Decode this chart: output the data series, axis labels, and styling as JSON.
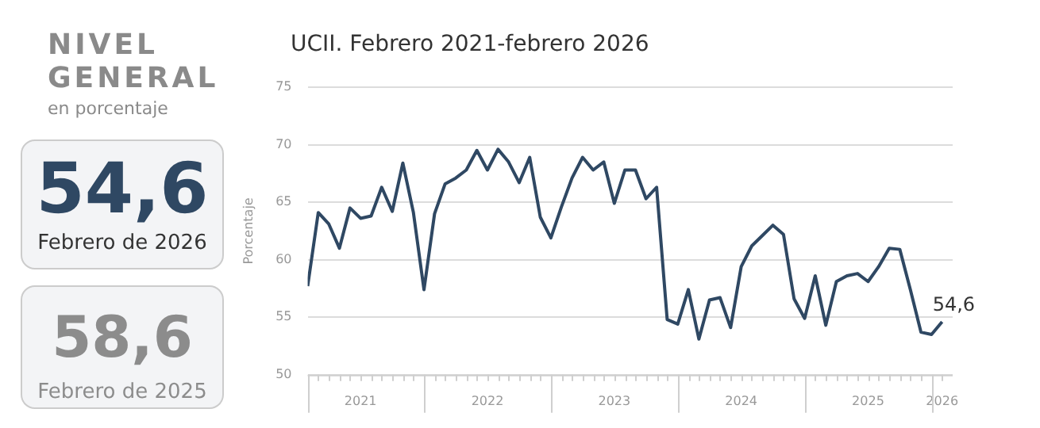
{
  "chart_data": [
    {
      "type": "other",
      "title": "NIVEL GENERAL",
      "subtitle": "en porcentaje",
      "annotations": [
        "54,6",
        "Febrero de 2026",
        "58,6",
        "Febrero de 2025"
      ]
    },
    {
      "type": "line",
      "title": "UCII. Febrero 2021-febrero 2026",
      "ylabel": "Porcentaje",
      "x": [
        "2021-02",
        "2021-03",
        "2021-04",
        "2021-05",
        "2021-06",
        "2021-07",
        "2021-08",
        "2021-09",
        "2021-10",
        "2021-11",
        "2021-12",
        "2022-01",
        "2022-02",
        "2022-03",
        "2022-04",
        "2022-05",
        "2022-06",
        "2022-07",
        "2022-08",
        "2022-09",
        "2022-10",
        "2022-11",
        "2022-12",
        "2023-01",
        "2023-02",
        "2023-03",
        "2023-04",
        "2023-05",
        "2023-06",
        "2023-07",
        "2023-08",
        "2023-09",
        "2023-10",
        "2023-11",
        "2023-12",
        "2024-01",
        "2024-02",
        "2024-03",
        "2024-04",
        "2024-05",
        "2024-06",
        "2024-07",
        "2024-08",
        "2024-09",
        "2024-10",
        "2024-11",
        "2024-12",
        "2025-01",
        "2025-02",
        "2025-03",
        "2025-04",
        "2025-05",
        "2025-06",
        "2025-07",
        "2025-08",
        "2025-09",
        "2025-10",
        "2025-11",
        "2025-12",
        "2026-01",
        "2026-02"
      ],
      "series": [
        {
          "color": "#2f4863",
          "values": [
            57.7,
            64.1,
            63.1,
            61.0,
            64.5,
            63.6,
            63.8,
            66.3,
            64.2,
            68.4,
            64.1,
            57.4,
            64.0,
            66.6,
            67.1,
            67.8,
            69.5,
            67.8,
            69.6,
            68.5,
            66.7,
            68.9,
            63.7,
            61.9,
            64.6,
            67.1,
            68.9,
            67.8,
            68.5,
            64.9,
            67.8,
            67.8,
            65.3,
            66.3,
            54.8,
            54.4,
            57.4,
            53.1,
            56.5,
            56.7,
            54.1,
            59.4,
            61.2,
            62.1,
            63.0,
            62.2,
            56.6,
            54.9,
            58.6,
            54.3,
            58.1,
            58.6,
            58.8,
            58.1,
            59.4,
            61.0,
            60.9,
            57.4,
            53.7,
            53.5,
            54.6
          ]
        }
      ],
      "xlim": [
        "2021-02",
        "2026-03"
      ],
      "xticks": [
        {
          "value": "2021-07",
          "label": "2021"
        },
        {
          "value": "2022-07",
          "label": "2022"
        },
        {
          "value": "2023-07",
          "label": "2023"
        },
        {
          "value": "2024-07",
          "label": "2024"
        },
        {
          "value": "2025-07",
          "label": "2025"
        },
        {
          "value": "2026-02",
          "label": "2026"
        }
      ],
      "ylim": [
        50,
        75
      ],
      "yticks": [
        50,
        55,
        60,
        65,
        70,
        75
      ],
      "grid": "y",
      "legend": false,
      "annotations": [
        {
          "text": "54,6",
          "x": "2026-02",
          "y": 54.6
        }
      ]
    }
  ]
}
